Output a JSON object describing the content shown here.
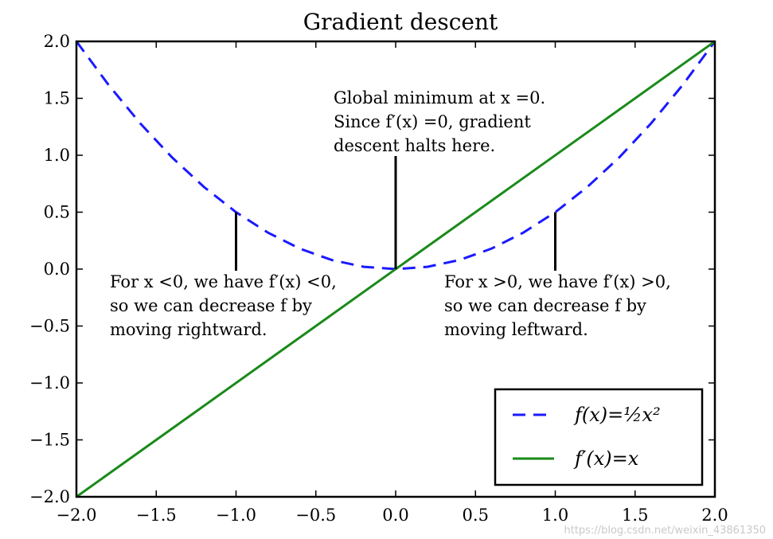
{
  "chart_data": {
    "type": "line",
    "title": "Gradient descent",
    "xlim": [
      -2.0,
      2.0
    ],
    "ylim": [
      -2.0,
      2.0
    ],
    "xticks": [
      -2.0,
      -1.5,
      -1.0,
      -0.5,
      0.0,
      0.5,
      1.0,
      1.5,
      2.0
    ],
    "yticks": [
      -2.0,
      -1.5,
      -1.0,
      -0.5,
      0.0,
      0.5,
      1.0,
      1.5,
      2.0
    ],
    "xtick_labels": [
      "−2.0",
      "−1.5",
      "−1.0",
      "−0.5",
      "0.0",
      "0.5",
      "1.0",
      "1.5",
      "2.0"
    ],
    "ytick_labels": [
      "−2.0",
      "−1.5",
      "−1.0",
      "−0.5",
      "0.0",
      "0.5",
      "1.0",
      "1.5",
      "2.0"
    ],
    "grid": false,
    "legend_position": "bottom-right",
    "series": [
      {
        "name": "f(x)=½x²",
        "style": "dashed",
        "color": "#1a1aff",
        "x": [
          -2.0,
          -1.8,
          -1.6,
          -1.4,
          -1.2,
          -1.0,
          -0.8,
          -0.6,
          -0.4,
          -0.2,
          0.0,
          0.2,
          0.4,
          0.6,
          0.8,
          1.0,
          1.2,
          1.4,
          1.6,
          1.8,
          2.0
        ],
        "y": [
          2.0,
          1.62,
          1.28,
          0.98,
          0.72,
          0.5,
          0.32,
          0.18,
          0.08,
          0.02,
          0.0,
          0.02,
          0.08,
          0.18,
          0.32,
          0.5,
          0.72,
          0.98,
          1.28,
          1.62,
          2.0
        ]
      },
      {
        "name": "f′(x)=x",
        "style": "solid",
        "color": "#1a8a1a",
        "x": [
          -2.0,
          2.0
        ],
        "y": [
          -2.0,
          2.0
        ]
      }
    ],
    "annotations": [
      {
        "lines": [
          "For x <0, we have f′(x) <0,",
          "so we can decrease f by",
          "moving rightward."
        ],
        "point": [
          -1.0,
          0.5
        ]
      },
      {
        "lines": [
          "Global minimum at x =0.",
          "Since f′(x) =0, gradient",
          "descent halts here."
        ],
        "point": [
          0.0,
          0.0
        ]
      },
      {
        "lines": [
          "For x >0, we have f′(x) >0,",
          "so we can decrease f by",
          "moving leftward."
        ],
        "point": [
          1.0,
          0.5
        ]
      }
    ]
  },
  "watermark": "https://blog.csdn.net/weixin_43861350"
}
